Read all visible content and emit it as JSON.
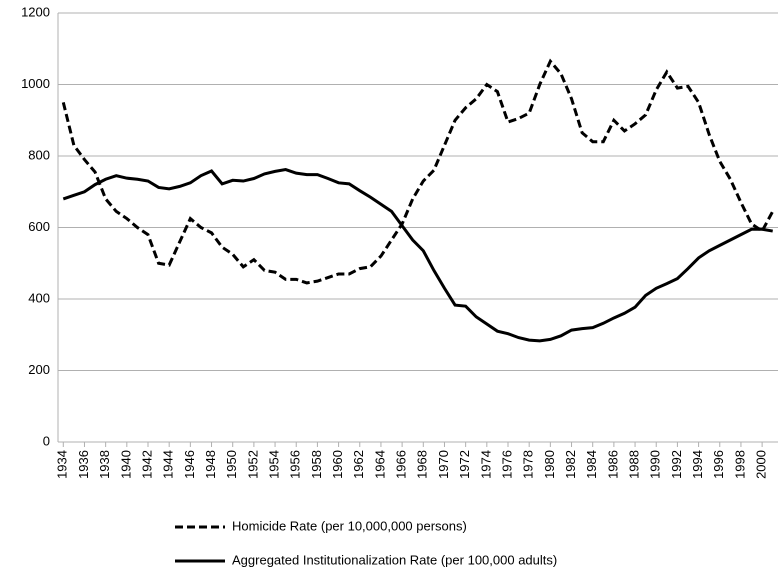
{
  "chart_data": {
    "type": "line",
    "x": [
      1934,
      1935,
      1936,
      1937,
      1938,
      1939,
      1940,
      1941,
      1942,
      1943,
      1944,
      1945,
      1946,
      1947,
      1948,
      1949,
      1950,
      1951,
      1952,
      1953,
      1954,
      1955,
      1956,
      1957,
      1958,
      1959,
      1960,
      1961,
      1962,
      1963,
      1964,
      1965,
      1966,
      1967,
      1968,
      1969,
      1970,
      1971,
      1972,
      1973,
      1974,
      1975,
      1976,
      1977,
      1978,
      1979,
      1980,
      1981,
      1982,
      1983,
      1984,
      1985,
      1986,
      1987,
      1988,
      1989,
      1990,
      1991,
      1992,
      1993,
      1994,
      1995,
      1996,
      1997,
      1998,
      1999,
      2000,
      2001
    ],
    "series": [
      {
        "name": "Homicide Rate (per 10,000,000 persons)",
        "color": "#000000",
        "dash": true,
        "values": [
          950,
          830,
          790,
          755,
          680,
          645,
          625,
          600,
          580,
          500,
          495,
          560,
          625,
          600,
          585,
          545,
          525,
          490,
          510,
          480,
          475,
          455,
          455,
          445,
          450,
          460,
          470,
          470,
          485,
          490,
          520,
          565,
          610,
          680,
          730,
          760,
          830,
          900,
          935,
          960,
          1000,
          980,
          895,
          905,
          920,
          1000,
          1065,
          1030,
          960,
          865,
          840,
          840,
          900,
          870,
          890,
          915,
          985,
          1035,
          990,
          995,
          950,
          860,
          785,
          735,
          670,
          610,
          590,
          645
        ]
      },
      {
        "name": "Aggregated Institutionalization Rate (per 100,000 adults)",
        "color": "#000000",
        "dash": false,
        "values": [
          680,
          690,
          700,
          720,
          735,
          745,
          738,
          735,
          730,
          712,
          708,
          715,
          725,
          745,
          758,
          722,
          732,
          730,
          737,
          750,
          757,
          762,
          752,
          748,
          748,
          737,
          725,
          722,
          703,
          685,
          665,
          645,
          605,
          565,
          535,
          480,
          430,
          383,
          380,
          350,
          330,
          310,
          303,
          292,
          285,
          283,
          287,
          297,
          313,
          317,
          320,
          332,
          347,
          360,
          377,
          410,
          430,
          443,
          457,
          485,
          515,
          535,
          550,
          565,
          580,
          595,
          595,
          590
        ]
      }
    ],
    "xlim": [
      1933.5,
      2001.5
    ],
    "xticks": [
      1934,
      1936,
      1938,
      1940,
      1942,
      1944,
      1946,
      1948,
      1950,
      1952,
      1954,
      1956,
      1958,
      1960,
      1962,
      1964,
      1966,
      1968,
      1970,
      1972,
      1974,
      1976,
      1978,
      1980,
      1982,
      1984,
      1986,
      1988,
      1990,
      1992,
      1994,
      1996,
      1998,
      2000
    ],
    "ylim": [
      0,
      1200
    ],
    "yticks": [
      0,
      200,
      400,
      600,
      800,
      1000,
      1200
    ],
    "grid": true,
    "legend": "bottom"
  }
}
